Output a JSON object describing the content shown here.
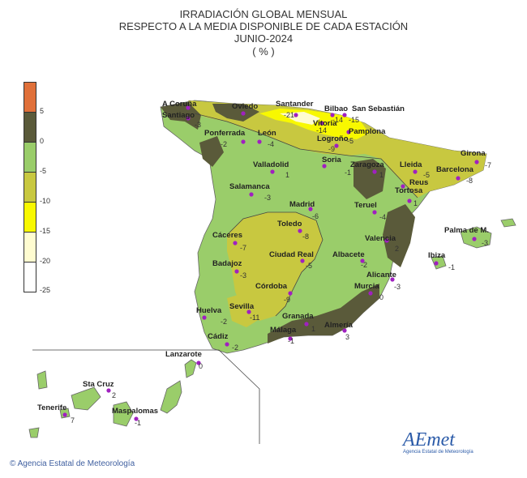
{
  "title": {
    "line1": "IRRADIACIÓN GLOBAL MENSUAL",
    "line2": "RESPECTO A LA MEDIA DISPONIBLE DE CADA ESTACIÓN",
    "line3": "JUNIO-2024",
    "line4": "( % )"
  },
  "legend": {
    "ticks": [
      "5",
      "0",
      "-5",
      "-10",
      "-15",
      "-20",
      "-25"
    ],
    "colors": [
      "#e0703a",
      "#5a5a3a",
      "#9acd6a",
      "#c8c840",
      "#f8f800",
      "#fffcd0",
      "#ffffff"
    ]
  },
  "colors": {
    "land_base": "#9acd6a",
    "dark": "#5a5a3a",
    "olive": "#c8c840",
    "yellow": "#f8f800",
    "sea": "#ffffff",
    "station": "#a020c0",
    "isoline_marker": "#3050c0"
  },
  "stations": [
    {
      "name": "A Coruña",
      "value": ""
    },
    {
      "name": "Santiago",
      "value": "-3"
    },
    {
      "name": "Oviedo",
      "value": ""
    },
    {
      "name": "Santander",
      "value": "-21"
    },
    {
      "name": "Bilbao",
      "value": "-14"
    },
    {
      "name": "San Sebastián",
      "value": "-15"
    },
    {
      "name": "Vitoria",
      "value": "-14"
    },
    {
      "name": "Pamplona",
      "value": "-5"
    },
    {
      "name": "Logroño",
      "value": "-9"
    },
    {
      "name": "Ponferrada",
      "value": "-2"
    },
    {
      "name": "León",
      "value": "-4"
    },
    {
      "name": "Valladolid",
      "value": "1"
    },
    {
      "name": "Soria",
      "value": "-1"
    },
    {
      "name": "Zaragoza",
      "value": "1"
    },
    {
      "name": "Lleida",
      "value": "-5"
    },
    {
      "name": "Girona",
      "value": "-7"
    },
    {
      "name": "Barcelona",
      "value": "-8"
    },
    {
      "name": "Reus",
      "value": ""
    },
    {
      "name": "Tortosa",
      "value": "1"
    },
    {
      "name": "Salamanca",
      "value": "-3"
    },
    {
      "name": "Madrid",
      "value": "-6"
    },
    {
      "name": "Teruel",
      "value": "-4"
    },
    {
      "name": "Toledo",
      "value": "-8"
    },
    {
      "name": "Cáceres",
      "value": "-7"
    },
    {
      "name": "Valencia",
      "value": "2"
    },
    {
      "name": "Palma de M.",
      "value": "-3"
    },
    {
      "name": "Ciudad Real",
      "value": "-5"
    },
    {
      "name": "Albacete",
      "value": "-2"
    },
    {
      "name": "Badajoz",
      "value": "-3"
    },
    {
      "name": "Ibiza",
      "value": "-1"
    },
    {
      "name": "Alicante",
      "value": "-3"
    },
    {
      "name": "Córdoba",
      "value": "-9"
    },
    {
      "name": "Murcia",
      "value": "0"
    },
    {
      "name": "Sevilla",
      "value": "-11"
    },
    {
      "name": "Huelva",
      "value": "-2"
    },
    {
      "name": "Granada",
      "value": "1"
    },
    {
      "name": "Almería",
      "value": "3"
    },
    {
      "name": "Málaga",
      "value": "-1"
    },
    {
      "name": "Cádiz",
      "value": "-2"
    },
    {
      "name": "Lanzarote",
      "value": "0"
    },
    {
      "name": "Sta Cruz",
      "value": "2"
    },
    {
      "name": "Tenerife",
      "value": "7"
    },
    {
      "name": "Maspalomas",
      "value": "-1"
    }
  ],
  "footer": "Agencia Estatal de Meteorología",
  "logo": {
    "text": "AEmet",
    "subtitle": "Agencia Estatal de Meteorología"
  }
}
